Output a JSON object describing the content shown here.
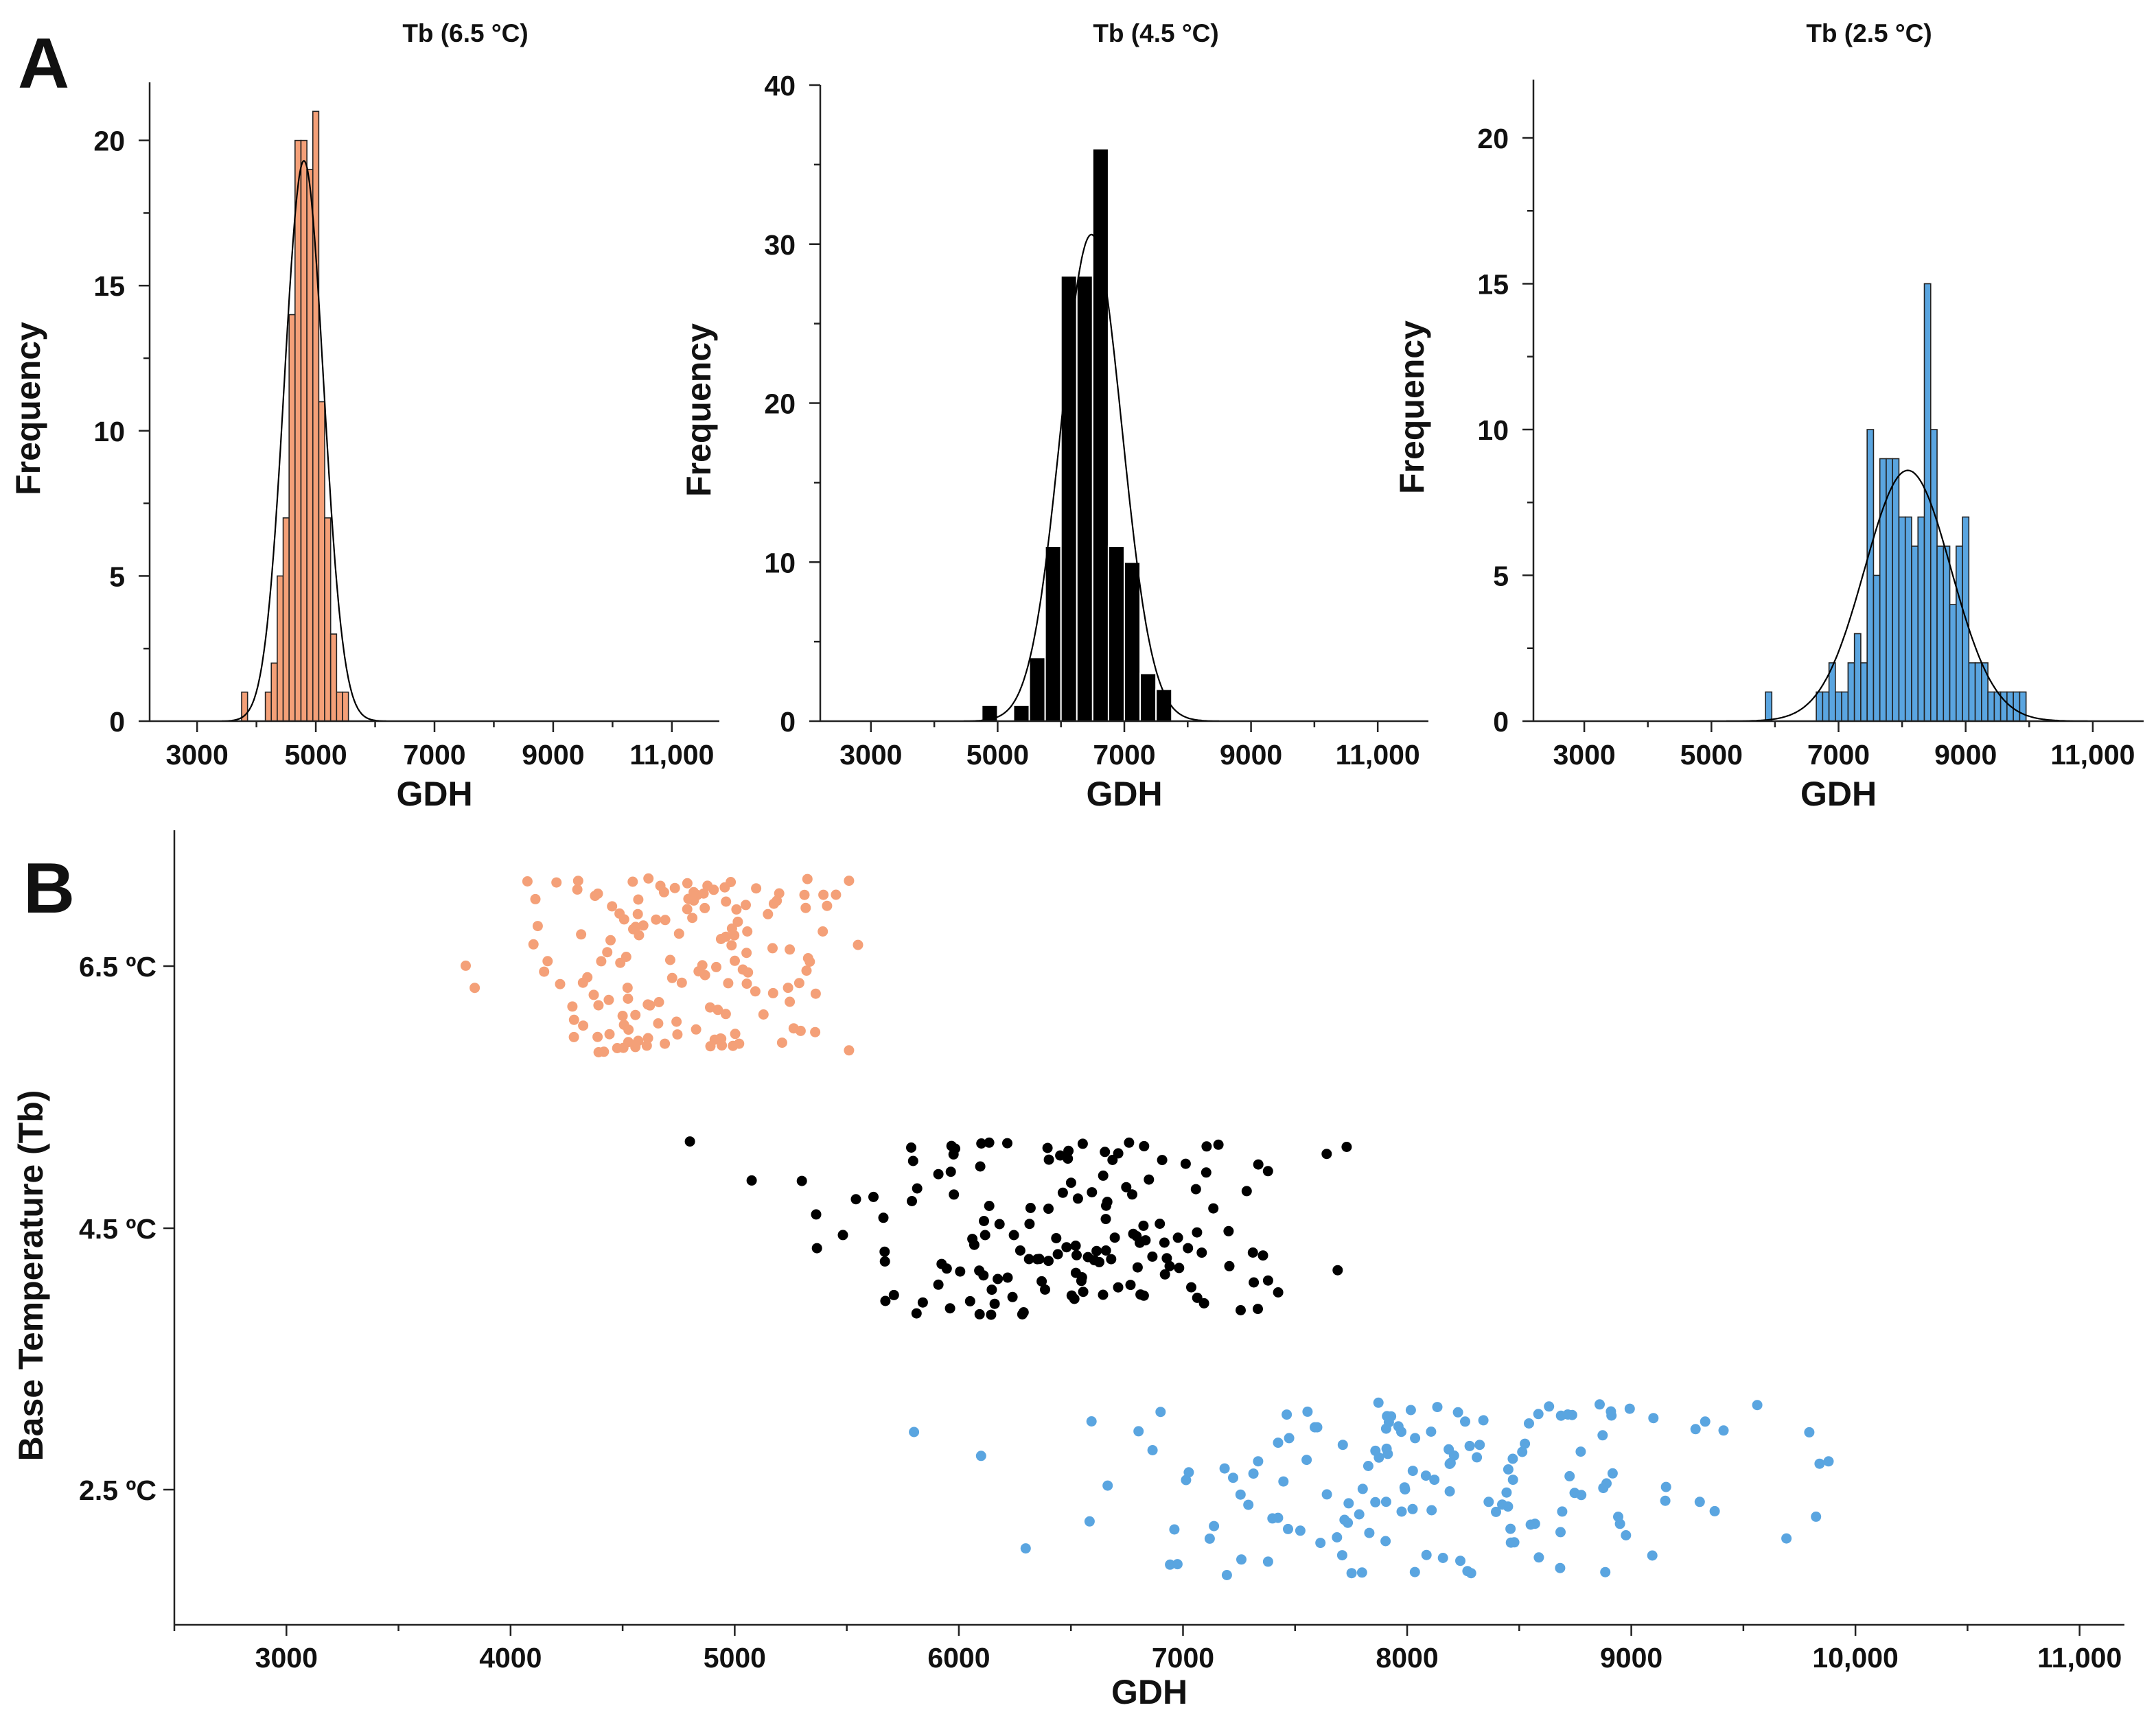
{
  "figure": {
    "panel_a_label": "A",
    "panel_b_label": "B"
  },
  "chart_data": [
    {
      "type": "bar",
      "subtype": "histogram",
      "title": "Tb (6.5 °C)",
      "xlabel": "GDH",
      "ylabel": "Frequency",
      "xlim": [
        2200,
        11800
      ],
      "ylim": [
        0,
        22
      ],
      "xticks": [
        3000,
        5000,
        7000,
        9000,
        11000
      ],
      "xtick_labels": [
        "3000",
        "5000",
        "7000",
        "9000",
        "11,000"
      ],
      "yticks": [
        0,
        5,
        10,
        15,
        20
      ],
      "ytick_labels": [
        "0",
        "5",
        "10",
        "15",
        "20"
      ],
      "bin_width": 100,
      "bin_starts": [
        3750,
        3850,
        3950,
        4050,
        4150,
        4250,
        4350,
        4450,
        4550,
        4650,
        4750,
        4850,
        4950,
        5050,
        5150,
        5250,
        5350,
        5450
      ],
      "values": [
        1,
        0,
        0,
        0,
        1,
        2,
        5,
        7,
        14,
        20,
        20,
        19,
        21,
        11,
        7,
        3,
        1,
        1
      ],
      "fit": {
        "kind": "normal",
        "peak": 19.3,
        "mean": 4800,
        "sd": 330
      },
      "color": "#f4a078"
    },
    {
      "type": "bar",
      "subtype": "histogram",
      "title": "Tb (4.5 °C)",
      "xlabel": "GDH",
      "ylabel": "Frequency",
      "xlim": [
        2200,
        11800
      ],
      "ylim": [
        0,
        40
      ],
      "xticks": [
        3000,
        5000,
        7000,
        9000,
        11000
      ],
      "xtick_labels": [
        "3000",
        "5000",
        "7000",
        "9000",
        "11,000"
      ],
      "yticks": [
        0,
        10,
        20,
        30,
        40
      ],
      "ytick_labels": [
        "0",
        "10",
        "20",
        "30",
        "40"
      ],
      "bin_width": 250,
      "bin_starts": [
        4750,
        5000,
        5250,
        5500,
        5750,
        6000,
        6250,
        6500,
        6750,
        7000,
        7250,
        7500
      ],
      "values": [
        1,
        0,
        1,
        4,
        11,
        28,
        28,
        36,
        11,
        10,
        3,
        2
      ],
      "fit": {
        "kind": "normal",
        "peak": 30.6,
        "mean": 6480,
        "sd": 480
      },
      "color": "#000000"
    },
    {
      "type": "bar",
      "subtype": "histogram",
      "title": "Tb (2.5 °C)",
      "xlabel": "GDH",
      "ylabel": "Frequency",
      "xlim": [
        2200,
        11800
      ],
      "ylim": [
        0,
        22
      ],
      "xticks": [
        3000,
        5000,
        7000,
        9000,
        11000
      ],
      "xtick_labels": [
        "3000",
        "5000",
        "7000",
        "9000",
        "11,000"
      ],
      "yticks": [
        0,
        5,
        10,
        15,
        20
      ],
      "ytick_labels": [
        "0",
        "5",
        "10",
        "15",
        "20"
      ],
      "bin_width": 100,
      "bin_starts": [
        5850,
        5950,
        6050,
        6150,
        6250,
        6350,
        6450,
        6550,
        6650,
        6750,
        6850,
        6950,
        7050,
        7150,
        7250,
        7350,
        7450,
        7550,
        7650,
        7750,
        7850,
        7950,
        8050,
        8150,
        8250,
        8350,
        8450,
        8550,
        8650,
        8750,
        8850,
        8950,
        9050,
        9150,
        9250,
        9350,
        9450,
        9550,
        9650,
        9750,
        9850
      ],
      "values": [
        1,
        0,
        0,
        0,
        0,
        0,
        0,
        0,
        1,
        1,
        2,
        1,
        1,
        2,
        3,
        2,
        10,
        5,
        9,
        9,
        9,
        7,
        7,
        6,
        7,
        15,
        10,
        6,
        6,
        4,
        6,
        7,
        2,
        2,
        2,
        1,
        1,
        1,
        1,
        1,
        1
      ],
      "fit": {
        "kind": "normal",
        "peak": 8.6,
        "mean": 8090,
        "sd": 680
      },
      "color": "#5aa5e0"
    },
    {
      "type": "scatter",
      "xlabel": "GDH",
      "ylabel": "Base Temperature (Tb)",
      "xlim": [
        2500,
        11200
      ],
      "xticks": [
        3000,
        4000,
        5000,
        6000,
        7000,
        8000,
        9000,
        10000,
        11000
      ],
      "xtick_labels": [
        "3000",
        "4000",
        "5000",
        "6000",
        "7000",
        "8000",
        "9000",
        "10,000",
        "11,000"
      ],
      "categories": [
        "6.5 ºC",
        "4.5 ºC",
        "2.5 ºC"
      ],
      "point_display": "jittered around each base temperature; points are generated from each group's mean and standard deviation",
      "series": [
        {
          "name": "6.5 ºC",
          "color": "#f4a078",
          "n": 150,
          "x_mean": 4800,
          "x_sd": 330,
          "x_min": 3800,
          "x_max": 5550
        },
        {
          "name": "4.5 ºC",
          "color": "#000000",
          "n": 150,
          "x_mean": 6480,
          "x_sd": 480,
          "x_min": 4800,
          "x_max": 7730
        },
        {
          "name": "2.5 ºC",
          "color": "#5aa5e0",
          "n": 150,
          "x_mean": 8090,
          "x_sd": 680,
          "x_min": 5800,
          "x_max": 9880
        }
      ]
    }
  ]
}
